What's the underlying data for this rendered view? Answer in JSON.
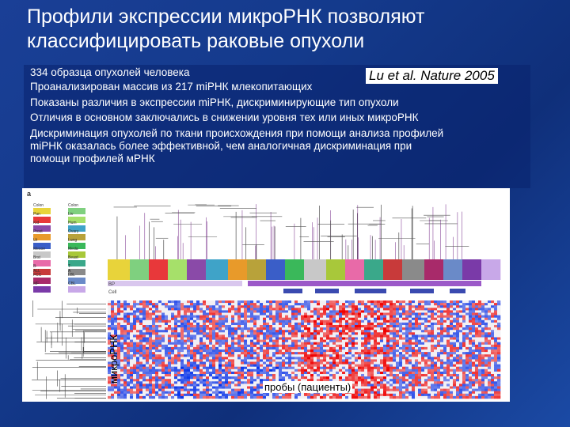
{
  "slide": {
    "title": "Профили экспрессии микроРНК позволяют классифицировать раковые опухоли",
    "citation": "Lu et al. Nature 2005",
    "bullets": [
      "334 образца опухолей человека",
      "Проанализирован массив из 217 miРНК млекопитающих",
      "Показаны различия в экспрессии miРНК, дискриминирующие тип опухоли",
      "Отличия в основном заключались в снижении уровня тех или иных микроРНК",
      "Дискриминация опухолей по ткани происхождения при помощи анализа профилей",
      "miРНК оказалась более эффективной, чем аналогичная дискриминация при",
      "помощи профилей мРНК"
    ]
  },
  "figure": {
    "panel_letter": "a",
    "y_axis_label": "микроРНК",
    "x_axis_label": "пробы (пациенты)",
    "row_labels": [
      "BP",
      "Cell"
    ],
    "legend": [
      {
        "label": "Colon",
        "color": "#e8d33a"
      },
      {
        "label": "Colon",
        "color": "#7fd07f"
      },
      {
        "label": "Pan",
        "color": "#e8383a"
      },
      {
        "label": "Liv",
        "color": "#a6e06a"
      },
      {
        "label": "Kid",
        "color": "#8a4aa8"
      },
      {
        "label": "Hum",
        "color": "#3fa3c8"
      },
      {
        "label": "Prost",
        "color": "#e89a2a"
      },
      {
        "label": "Ovary",
        "color": "#b8a23a"
      },
      {
        "label": "Ut",
        "color": "#3a5ec8"
      },
      {
        "label": "Lung",
        "color": "#3ab85a"
      },
      {
        "label": "Mesoe",
        "color": "#c8c8c8"
      },
      {
        "label": "Meda",
        "color": "#a8c83a"
      },
      {
        "label": "Brst",
        "color": "#e86aa8"
      },
      {
        "label": "Beast",
        "color": "#3aa88a"
      },
      {
        "label": "B-ALL",
        "color": "#c83a3a"
      },
      {
        "label": "T-A",
        "color": "#8a8a8a"
      },
      {
        "label": "FCC",
        "color": "#a82a6a"
      },
      {
        "label": "LBL",
        "color": "#6a8ac8"
      },
      {
        "label": "MF",
        "color": "#7a3aa8"
      },
      {
        "label": "CBL",
        "color": "#c8a8e8"
      }
    ]
  }
}
